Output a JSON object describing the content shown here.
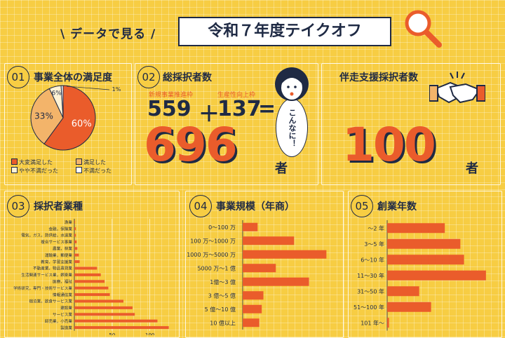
{
  "header": {
    "subtitle": "\\ データで見る /",
    "title": "令和７年度テイクオフ"
  },
  "panels": {
    "p1": {
      "num": "01",
      "title": "事業全体の満足度"
    },
    "p2": {
      "num": "02",
      "title": "総採択者数",
      "label_a": "新規事業推進枠",
      "label_b": "生産性向上枠",
      "value_a": "559",
      "plus": "＋",
      "value_b": "137",
      "equals": "=",
      "total": "696",
      "unit": "者",
      "bubble": "こんなに！"
    },
    "p3": {
      "title": "伴走支援採択者数",
      "total": "100",
      "unit": "者"
    },
    "p4": {
      "num": "03",
      "title": "採択者業種"
    },
    "p5": {
      "num": "04",
      "title": "事業規模（年商）"
    },
    "p6": {
      "num": "05",
      "title": "創業年数"
    }
  },
  "colors": {
    "accent": "#ea5c2b",
    "light": "#f3b46a",
    "navy": "#1f2a44",
    "bg": "#f7cd43"
  },
  "icons": [
    "magnifier-icon",
    "woman-icon",
    "handshake-icon"
  ],
  "chart_data": [
    {
      "type": "pie",
      "title": "事業全体の満足度",
      "categories": [
        "大変満足した",
        "満足した",
        "やや不満だった",
        "不満だった"
      ],
      "values": [
        60,
        33,
        6,
        1
      ],
      "labels": [
        "60%",
        "33%",
        "6%",
        "1%"
      ],
      "colors": [
        "#ea5c2b",
        "#f3b46a",
        "#fff3d6",
        "#ffffff"
      ]
    },
    {
      "type": "bar",
      "title": "採択者業種",
      "orientation": "horizontal",
      "categories": [
        "漁業",
        "金融，保険業",
        "電気，ガス，熱供給，水道業",
        "複合サービス事業",
        "農業，林業",
        "運輸業，郵便業",
        "教育，学習支援業",
        "不動産業，物品賃貸業",
        "生活関連サービス業，娯楽業",
        "医療，福祉",
        "学術研究，専門・技術サービス業",
        "情報通信業",
        "宿泊業，飲食サービス業",
        "建設業",
        "サービス業",
        "卸売業，小売業",
        "製造業"
      ],
      "values": [
        1,
        2,
        2,
        3,
        4,
        6,
        7,
        30,
        35,
        40,
        45,
        47,
        65,
        77,
        80,
        110,
        125
      ],
      "xticks": [
        "50",
        "100"
      ],
      "xlim": [
        0,
        130
      ]
    },
    {
      "type": "bar",
      "title": "事業規模（年商）",
      "orientation": "horizontal",
      "categories": [
        "0〜100 万",
        "100 万〜1000 万",
        "1000 万〜5000 万",
        "5000 万〜1 億",
        "1億〜3 億",
        "3 億〜5 億",
        "5 億〜10 億",
        "10 億以上"
      ],
      "values": [
        18,
        62,
        101,
        40,
        80,
        25,
        23,
        20
      ],
      "xlim": [
        0,
        110
      ]
    },
    {
      "type": "bar",
      "title": "創業年数",
      "orientation": "horizontal",
      "categories": [
        "〜2 年",
        "3〜5 年",
        "6〜10 年",
        "11〜30 年",
        "31〜50 年",
        "51〜100 年",
        "101 年〜"
      ],
      "values": [
        63,
        80,
        84,
        108,
        35,
        48,
        2
      ],
      "xlim": [
        0,
        115
      ]
    }
  ]
}
